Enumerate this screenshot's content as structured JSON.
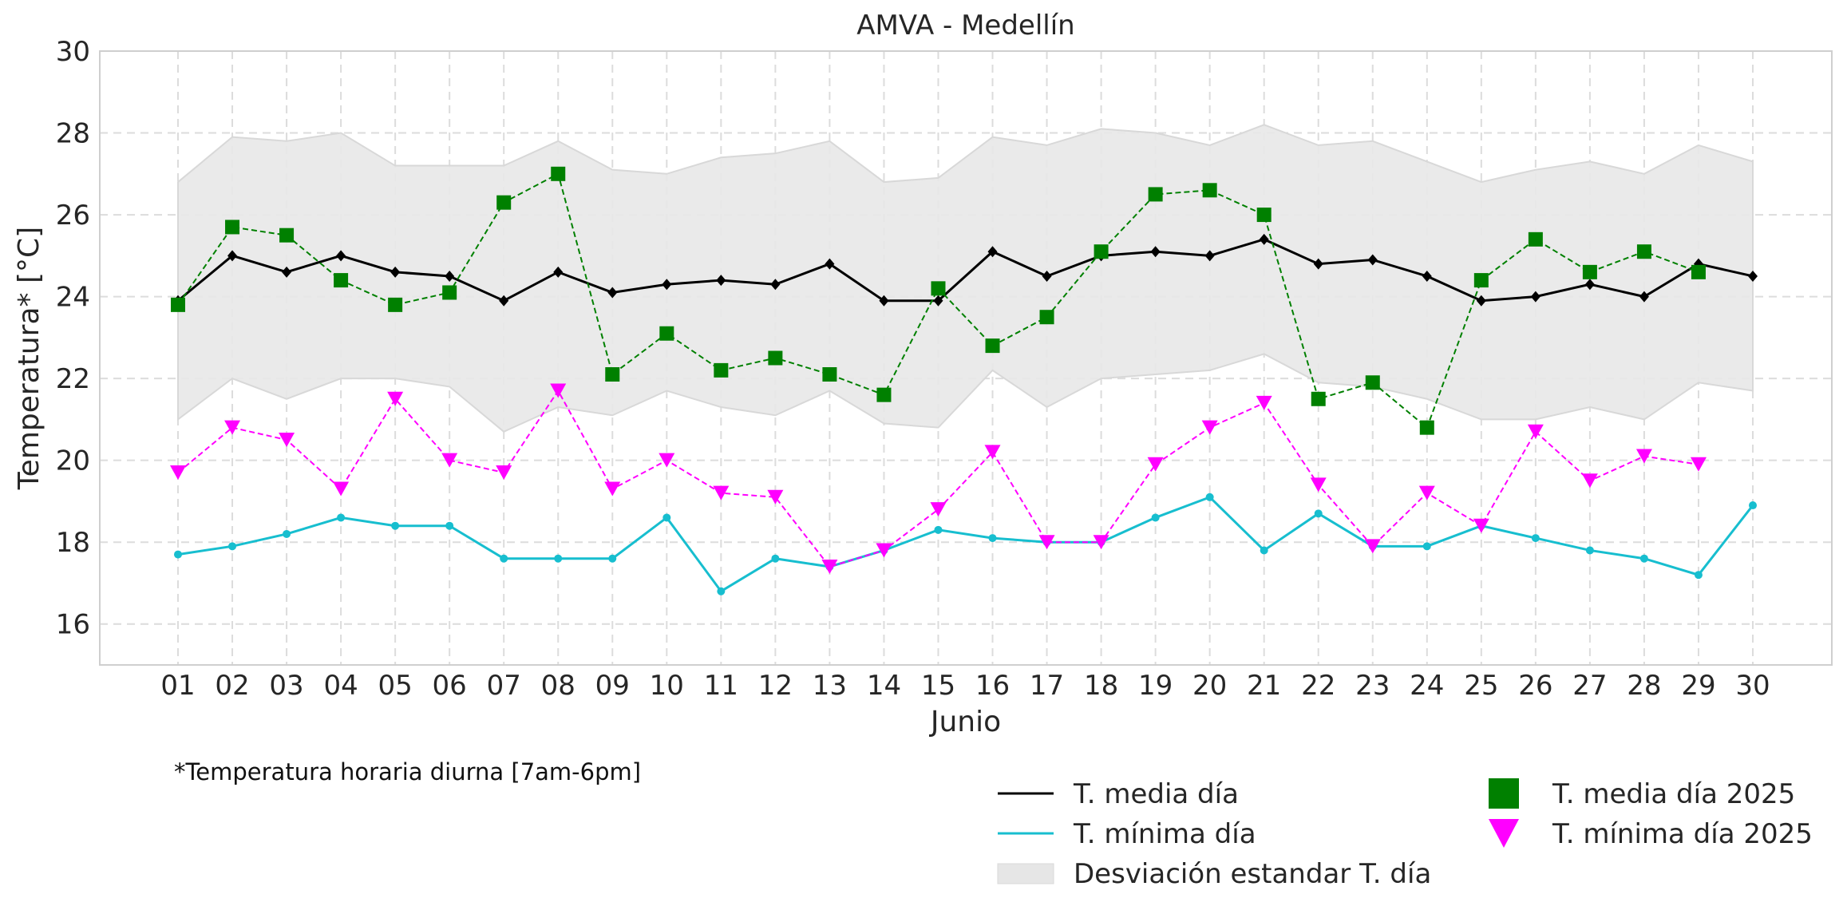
{
  "chart_data": {
    "type": "line",
    "title": "AMVA - Medellín",
    "xlabel": "Junio",
    "ylabel": "Temperatura* [°C]",
    "ylim": [
      15,
      30
    ],
    "yticks": [
      16,
      18,
      20,
      22,
      24,
      26,
      28,
      30
    ],
    "grid": true,
    "legend_position": "bottom-right",
    "categories": [
      "01",
      "02",
      "03",
      "04",
      "05",
      "06",
      "07",
      "08",
      "09",
      "10",
      "11",
      "12",
      "13",
      "14",
      "15",
      "16",
      "17",
      "18",
      "19",
      "20",
      "21",
      "22",
      "23",
      "24",
      "25",
      "26",
      "27",
      "28",
      "29",
      "30"
    ],
    "std_band": {
      "name": "Desviación estandar T. día",
      "upper": [
        26.8,
        27.9,
        27.8,
        28.0,
        27.2,
        27.2,
        27.2,
        27.8,
        27.1,
        27.0,
        27.4,
        27.5,
        27.8,
        26.8,
        26.9,
        27.9,
        27.7,
        28.1,
        28.0,
        27.7,
        28.2,
        27.7,
        27.8,
        27.3,
        26.8,
        27.1,
        27.3,
        27.0,
        27.7,
        27.3
      ],
      "lower": [
        21.0,
        22.0,
        21.5,
        22.0,
        22.0,
        21.8,
        20.7,
        21.3,
        21.1,
        21.7,
        21.3,
        21.1,
        21.7,
        20.9,
        20.8,
        22.2,
        21.3,
        22.0,
        22.1,
        22.2,
        22.6,
        21.9,
        21.8,
        21.5,
        21.0,
        21.0,
        21.3,
        21.0,
        21.9,
        21.7
      ]
    },
    "series": [
      {
        "name": "T. media día",
        "style": "solid-line",
        "color": "#000000",
        "values": [
          23.9,
          25.0,
          24.6,
          25.0,
          24.6,
          24.5,
          23.9,
          24.6,
          24.1,
          24.3,
          24.4,
          24.3,
          24.8,
          23.9,
          23.9,
          25.1,
          24.5,
          25.0,
          25.1,
          25.0,
          25.4,
          24.8,
          24.9,
          24.5,
          23.9,
          24.0,
          24.3,
          24.0,
          24.8,
          24.5
        ]
      },
      {
        "name": "T. mínima día",
        "style": "solid-line",
        "color": "#17becf",
        "values": [
          17.7,
          17.9,
          18.2,
          18.6,
          18.4,
          18.4,
          17.6,
          17.6,
          17.6,
          18.6,
          16.8,
          17.6,
          17.4,
          17.8,
          18.3,
          18.1,
          18.0,
          18.0,
          18.6,
          19.1,
          17.8,
          18.7,
          17.9,
          17.9,
          18.4,
          18.1,
          17.8,
          17.6,
          17.2,
          18.9
        ]
      },
      {
        "name": "T. media día 2025",
        "style": "dashed-squares",
        "color": "#008000",
        "values": [
          23.8,
          25.7,
          25.5,
          24.4,
          23.8,
          24.1,
          26.3,
          27.0,
          22.1,
          23.1,
          22.2,
          22.5,
          22.1,
          21.6,
          24.2,
          22.8,
          23.5,
          25.1,
          26.5,
          26.6,
          26.0,
          21.5,
          21.9,
          20.8,
          24.4,
          25.4,
          24.6,
          25.1,
          24.6,
          null
        ]
      },
      {
        "name": "T. mínima día 2025",
        "style": "dashed-triangles",
        "color": "#ff00ff",
        "values": [
          19.7,
          20.8,
          20.5,
          19.3,
          21.5,
          20.0,
          19.7,
          21.7,
          19.3,
          20.0,
          19.2,
          19.1,
          17.4,
          17.8,
          18.8,
          20.2,
          18.0,
          18.0,
          19.9,
          20.8,
          21.4,
          19.4,
          17.9,
          19.2,
          18.4,
          20.7,
          19.5,
          20.1,
          19.9,
          null
        ]
      }
    ],
    "legend": [
      {
        "label": "T. media día",
        "kind": "line",
        "color": "#000000"
      },
      {
        "label": "T. mínima día",
        "kind": "line",
        "color": "#17becf"
      },
      {
        "label": "Desviación estandar T. día",
        "kind": "patch",
        "color": "#e6e6e6"
      },
      {
        "label": "T. media día 2025",
        "kind": "square",
        "color": "#008000"
      },
      {
        "label": "T. mínima día 2025",
        "kind": "triangle",
        "color": "#ff00ff"
      }
    ],
    "note": "*Temperatura horaria diurna [7am-6pm]"
  }
}
